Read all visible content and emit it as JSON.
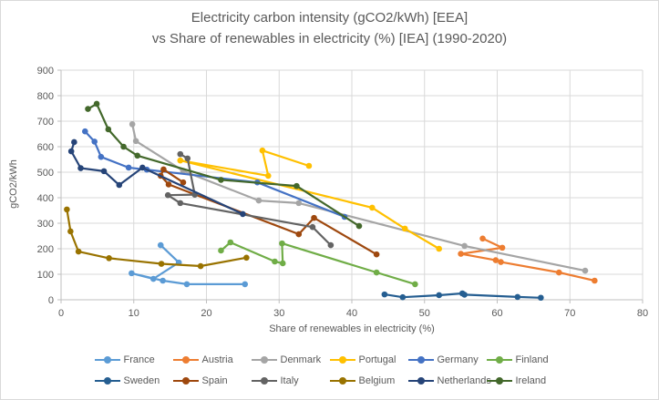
{
  "title": {
    "line1": "Electricity carbon intensity (gCO2/kWh) [EEA]",
    "line2": "vs Share of renewables in electricity (%) [IEA] (1990-2020)"
  },
  "axes": {
    "y_label": "gCO2/kWh",
    "x_label": "Share of renewables in electricity (%)",
    "x_ticks": [
      0,
      10,
      20,
      30,
      40,
      50,
      60,
      70,
      80
    ],
    "y_ticks": [
      0,
      100,
      200,
      300,
      400,
      500,
      600,
      700,
      800,
      900
    ]
  },
  "chart_data": {
    "type": "line",
    "title": "Electricity carbon intensity (gCO2/kWh) [EEA] vs Share of renewables in electricity (%) [IEA] (1990-2020)",
    "xlabel": "Share of renewables in electricity (%)",
    "ylabel": "gCO2/kWh",
    "xlim": [
      0,
      80
    ],
    "ylim": [
      0,
      900
    ],
    "x_tick_step": 10,
    "y_tick_step": 100,
    "grid": true,
    "legend_position": "bottom",
    "marker": "circle",
    "series": [
      {
        "name": "France",
        "color": "#5B9BD5",
        "points": [
          [
            13.7,
            214
          ],
          [
            16.2,
            146
          ],
          [
            12.7,
            82
          ],
          [
            9.7,
            104
          ],
          [
            14,
            75
          ],
          [
            17.3,
            61
          ],
          [
            25.3,
            61
          ]
        ]
      },
      {
        "name": "Austria",
        "color": "#ED7D31",
        "points": [
          [
            58,
            240
          ],
          [
            60.7,
            204
          ],
          [
            55,
            180
          ],
          [
            59.8,
            155
          ],
          [
            60.5,
            148
          ],
          [
            68.5,
            107
          ],
          [
            73.4,
            75
          ]
        ]
      },
      {
        "name": "Denmark",
        "color": "#A5A5A5",
        "points": [
          [
            9.8,
            688
          ],
          [
            10.3,
            622
          ],
          [
            16.8,
            505
          ],
          [
            27.2,
            389
          ],
          [
            32.7,
            379
          ],
          [
            55.5,
            211
          ],
          [
            72.1,
            114
          ]
        ]
      },
      {
        "name": "Portugal",
        "color": "#FFC000",
        "points": [
          [
            34.1,
            525
          ],
          [
            27.7,
            585
          ],
          [
            28.5,
            486
          ],
          [
            16.4,
            546
          ],
          [
            42.8,
            361
          ],
          [
            47.3,
            279
          ],
          [
            52,
            200
          ]
        ]
      },
      {
        "name": "Germany",
        "color": "#4472C4",
        "points": [
          [
            3.3,
            660
          ],
          [
            4.6,
            620
          ],
          [
            5.5,
            560
          ],
          [
            9.3,
            518
          ],
          [
            11.8,
            510
          ],
          [
            27,
            460
          ],
          [
            39,
            325
          ]
        ]
      },
      {
        "name": "Finland",
        "color": "#70AD47",
        "points": [
          [
            22,
            193
          ],
          [
            23.3,
            225
          ],
          [
            29.4,
            150
          ],
          [
            30.5,
            143
          ],
          [
            30.4,
            221
          ],
          [
            43.4,
            107
          ],
          [
            48.7,
            61
          ]
        ]
      },
      {
        "name": "Sweden",
        "color": "#255E91",
        "points": [
          [
            44.5,
            21
          ],
          [
            47,
            10
          ],
          [
            52,
            18
          ],
          [
            55.2,
            25
          ],
          [
            55.5,
            20
          ],
          [
            62.8,
            11
          ],
          [
            66,
            8
          ]
        ]
      },
      {
        "name": "Spain",
        "color": "#9E480E",
        "points": [
          [
            16.8,
            460
          ],
          [
            14.1,
            511
          ],
          [
            13.7,
            486
          ],
          [
            14.8,
            452
          ],
          [
            32.7,
            257
          ],
          [
            34.8,
            321
          ],
          [
            43.4,
            178
          ]
        ]
      },
      {
        "name": "Italy",
        "color": "#636363",
        "points": [
          [
            16.4,
            571
          ],
          [
            17.4,
            554
          ],
          [
            18.4,
            412
          ],
          [
            14.7,
            410
          ],
          [
            16.4,
            379
          ],
          [
            34.6,
            285
          ],
          [
            37.1,
            214
          ]
        ]
      },
      {
        "name": "Belgium",
        "color": "#997300",
        "points": [
          [
            0.8,
            354
          ],
          [
            1.3,
            268
          ],
          [
            2.4,
            189
          ],
          [
            6.6,
            163
          ],
          [
            13.8,
            141
          ],
          [
            19.2,
            132
          ],
          [
            25.5,
            165
          ]
        ]
      },
      {
        "name": "Netherlands",
        "color": "#264478",
        "points": [
          [
            1.8,
            618
          ],
          [
            1.4,
            582
          ],
          [
            2.7,
            516
          ],
          [
            5.9,
            504
          ],
          [
            8,
            450
          ],
          [
            11.2,
            518
          ],
          [
            25,
            336
          ]
        ]
      },
      {
        "name": "Ireland",
        "color": "#43682B",
        "points": [
          [
            3.7,
            748
          ],
          [
            4.9,
            768
          ],
          [
            6.5,
            668
          ],
          [
            8.6,
            600
          ],
          [
            10.5,
            565
          ],
          [
            22,
            470
          ],
          [
            32.4,
            446
          ],
          [
            41,
            289
          ]
        ]
      }
    ]
  },
  "style": {
    "gridline_color": "#D9D9D9",
    "axis_color": "#BFBFBF",
    "text_color": "#595959"
  }
}
